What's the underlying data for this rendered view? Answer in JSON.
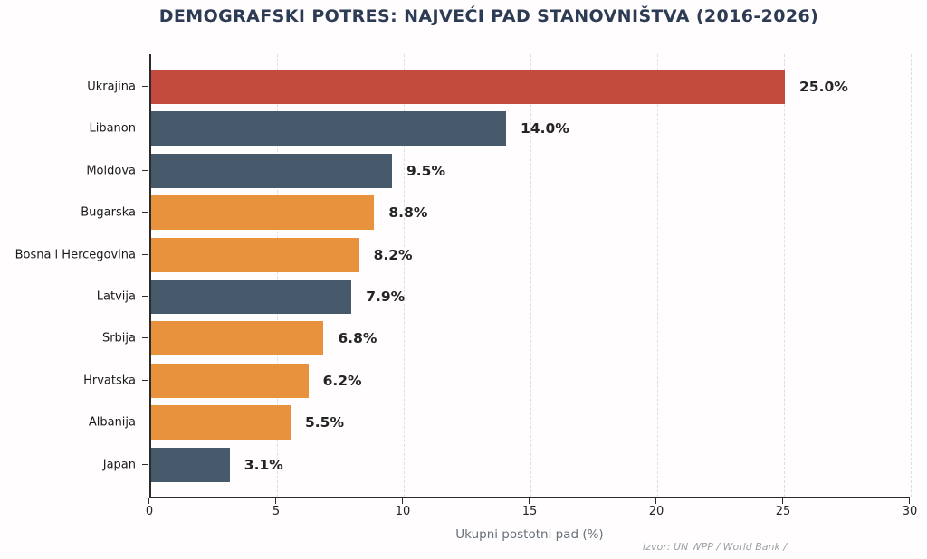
{
  "title": "DEMOGRAFSKI POTRES: NAJVEĆI PAD STANOVNIŠTVA (2016-2026)",
  "source_note": "Izvor: UN WPP / World Bank /",
  "colors": {
    "red": "#c34b3e",
    "slate": "#475a6b",
    "orange": "#e8923e",
    "title_navy": "#2d3b54",
    "axis": "#2b2b2b",
    "grid": "#dedee2",
    "xlabel_gray": "#68707b",
    "source_gray": "#9b9fa6"
  },
  "chart_data": {
    "type": "bar",
    "orientation": "horizontal",
    "title": "DEMOGRAFSKI POTRES: NAJVEĆI PAD STANOVNIŠTVA (2016-2026)",
    "xlabel": "Ukupni postotni pad (%)",
    "ylabel": "",
    "categories": [
      "Ukrajina",
      "Libanon",
      "Moldova",
      "Bugarska",
      "Bosna i Hercegovina",
      "Latvija",
      "Srbija",
      "Hrvatska",
      "Albanija",
      "Japan"
    ],
    "values": [
      25.0,
      14.0,
      9.5,
      8.8,
      8.2,
      7.9,
      6.8,
      6.2,
      5.5,
      3.1
    ],
    "value_labels": [
      "25.0%",
      "14.0%",
      "9.5%",
      "8.8%",
      "8.2%",
      "7.9%",
      "6.8%",
      "6.2%",
      "5.5%",
      "3.1%"
    ],
    "bar_color_keys": [
      "red",
      "slate",
      "slate",
      "orange",
      "orange",
      "slate",
      "orange",
      "orange",
      "orange",
      "slate"
    ],
    "xticks": [
      0,
      5,
      10,
      15,
      20,
      25,
      30
    ],
    "xtick_labels": [
      "0",
      "5",
      "10",
      "15",
      "20",
      "25",
      "30"
    ],
    "xlim": [
      0,
      30
    ],
    "grid": "vertical dashed, on",
    "legend": "none"
  }
}
